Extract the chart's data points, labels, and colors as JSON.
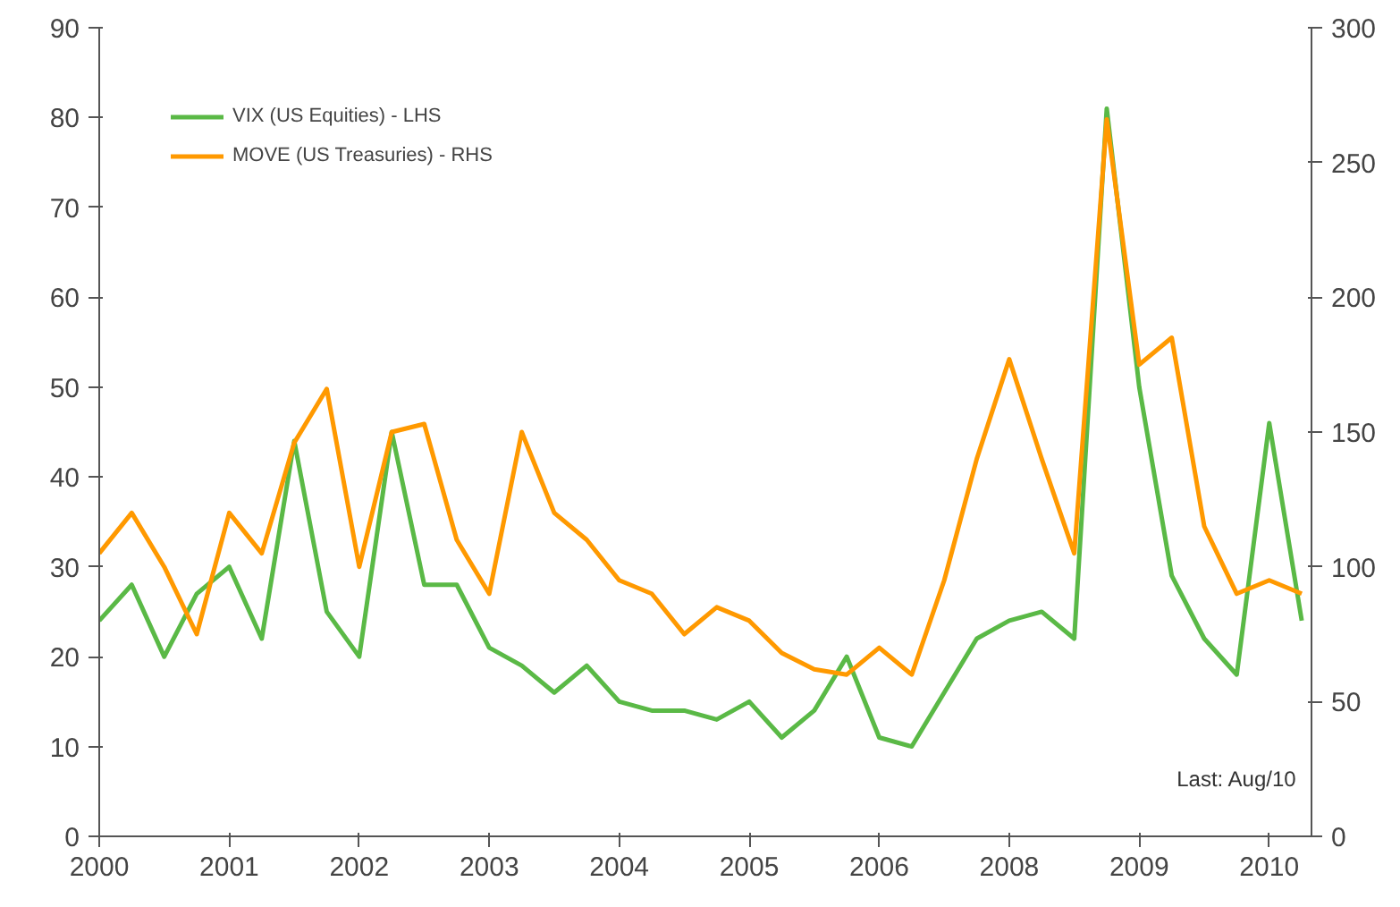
{
  "chart_data": {
    "type": "line",
    "categories": [
      "2000",
      null,
      null,
      null,
      "2001",
      null,
      null,
      null,
      "2002",
      null,
      null,
      null,
      "2003",
      null,
      null,
      null,
      "2004",
      null,
      null,
      null,
      "2005",
      null,
      null,
      null,
      "2006",
      null,
      null,
      null,
      "2008",
      null,
      null,
      null,
      "2009",
      null,
      null,
      null,
      "2010",
      null
    ],
    "ylim": [
      0,
      90
    ],
    "yticks": [
      0,
      10,
      20,
      30,
      40,
      50,
      60,
      70,
      80,
      90
    ],
    "y2lim": [
      0,
      300
    ],
    "y2ticks": [
      0,
      50,
      100,
      150,
      200,
      250,
      300
    ],
    "series": [
      {
        "name": "VIX (US Equities) - LHS",
        "color": "#5ab946",
        "values": [
          24,
          28,
          20,
          27,
          30,
          22,
          44,
          25,
          20,
          45,
          28,
          28,
          21,
          19,
          16,
          19,
          15,
          14,
          14,
          13,
          15,
          11,
          14,
          20,
          11,
          10,
          16,
          22,
          24,
          25,
          22,
          81,
          50,
          29,
          22,
          18,
          46,
          24
        ]
      },
      {
        "name": "MOVE (US Treasuries) - RHS",
        "color": "#ff9900",
        "axis": "y2",
        "values": [
          105,
          120,
          100,
          75,
          120,
          105,
          146,
          166,
          100,
          150,
          153,
          110,
          90,
          150,
          120,
          110,
          95,
          90,
          75,
          85,
          80,
          68,
          62,
          60,
          70,
          60,
          95,
          140,
          177,
          140,
          105,
          266,
          175,
          185,
          115,
          90,
          95,
          90
        ]
      }
    ],
    "legend": "top left",
    "annotations": [
      "Last: Aug/10"
    ]
  }
}
